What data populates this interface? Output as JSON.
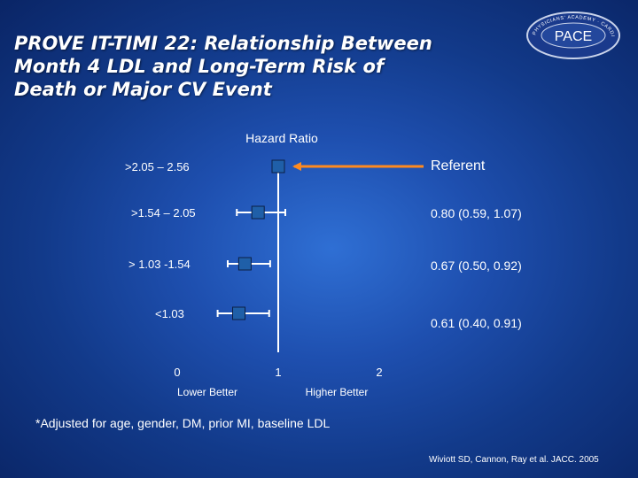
{
  "slide": {
    "title_lines": [
      "PROVE IT-TIMI 22: Relationship Between",
      "Month 4 LDL and Long-Term Risk of",
      "Death or Major CV Event"
    ],
    "logo": {
      "main_text": "PACE",
      "ring_text": "PHYSICIANS' ACADEMY · CARDIOVASCULAR EDUCATION",
      "colors": {
        "ring": "#1a3a8c",
        "border": "#c9d3ea",
        "text": "#ffffff"
      }
    },
    "footnote": "*Adjusted for age, gender, DM, prior MI, baseline LDL",
    "citation": "Wiviott SD, Cannon, Ray et al. JACC. 2005"
  },
  "chart_data": {
    "type": "forest",
    "title": "Hazard Ratio",
    "x_ticks": [
      0,
      1,
      2
    ],
    "xlim": [
      0,
      2
    ],
    "reference_line": 1,
    "left_label": "Lower Better",
    "right_label": "Higher Better",
    "rows": [
      {
        "category": ">2.05 – 2.56",
        "hr": 1.0,
        "ci_low": null,
        "ci_high": null,
        "label": "Referent",
        "referent": true
      },
      {
        "category": ">1.54 – 2.05",
        "hr": 0.8,
        "ci_low": 0.59,
        "ci_high": 1.07,
        "label": "0.80 (0.59, 1.07)",
        "referent": false
      },
      {
        "category": "> 1.03 -1.54",
        "hr": 0.67,
        "ci_low": 0.5,
        "ci_high": 0.92,
        "label": "0.67 (0.50, 0.92)",
        "referent": false
      },
      {
        "category": "<1.03",
        "hr": 0.61,
        "ci_low": 0.4,
        "ci_high": 0.91,
        "label": "0.61 (0.40, 0.91)",
        "referent": false
      }
    ],
    "colors": {
      "marker": "#1f5fa8",
      "marker_stroke": "#0c1f44",
      "arrow": "#ff8a1f",
      "line": "#ffffff",
      "text": "#ffffff"
    }
  }
}
